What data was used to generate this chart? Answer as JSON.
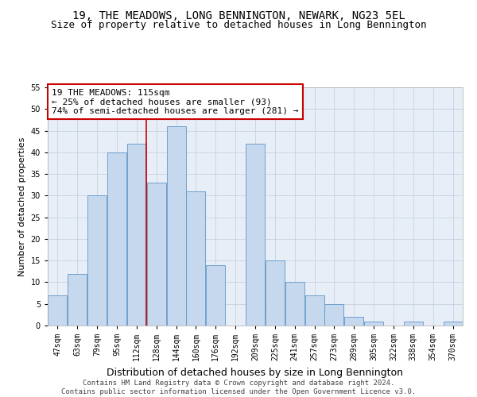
{
  "title": "19, THE MEADOWS, LONG BENNINGTON, NEWARK, NG23 5EL",
  "subtitle": "Size of property relative to detached houses in Long Bennington",
  "xlabel": "Distribution of detached houses by size in Long Bennington",
  "ylabel": "Number of detached properties",
  "categories": [
    "47sqm",
    "63sqm",
    "79sqm",
    "95sqm",
    "112sqm",
    "128sqm",
    "144sqm",
    "160sqm",
    "176sqm",
    "192sqm",
    "209sqm",
    "225sqm",
    "241sqm",
    "257sqm",
    "273sqm",
    "289sqm",
    "305sqm",
    "322sqm",
    "338sqm",
    "354sqm",
    "370sqm"
  ],
  "values": [
    7,
    12,
    30,
    40,
    42,
    33,
    46,
    31,
    14,
    0,
    42,
    15,
    10,
    7,
    5,
    2,
    1,
    0,
    1,
    0,
    1
  ],
  "bar_color": "#c5d8ed",
  "bar_edge_color": "#6096c8",
  "background_color": "#e8eef8",
  "grid_color": "#c0ccd8",
  "annotation_box_text": "19 THE MEADOWS: 115sqm\n← 25% of detached houses are smaller (93)\n74% of semi-detached houses are larger (281) →",
  "annotation_box_color": "#ffffff",
  "annotation_box_edge_color": "#cc0000",
  "vline_color": "#cc0000",
  "vline_x_index": 4.5,
  "ylim": [
    0,
    55
  ],
  "yticks": [
    0,
    5,
    10,
    15,
    20,
    25,
    30,
    35,
    40,
    45,
    50,
    55
  ],
  "footer_line1": "Contains HM Land Registry data © Crown copyright and database right 2024.",
  "footer_line2": "Contains public sector information licensed under the Open Government Licence v3.0.",
  "title_fontsize": 10,
  "subtitle_fontsize": 9,
  "xlabel_fontsize": 9,
  "ylabel_fontsize": 8,
  "tick_fontsize": 7,
  "annotation_fontsize": 8,
  "footer_fontsize": 6.5
}
